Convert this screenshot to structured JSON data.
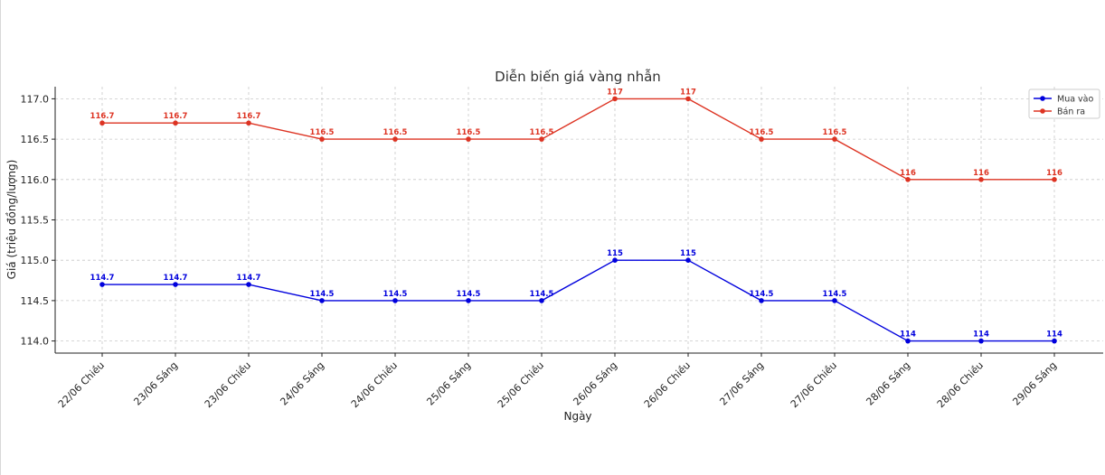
{
  "chart_data": {
    "type": "line",
    "title": "Diễn biến giá vàng nhẫn",
    "xlabel": "Ngày",
    "ylabel": "Giá (triệu đồng/lượng)",
    "categories": [
      "22/06 Chiều",
      "23/06 Sáng",
      "23/06 Chiều",
      "24/06 Sáng",
      "24/06 Chiều",
      "25/06 Sáng",
      "25/06 Chiều",
      "26/06 Sáng",
      "26/06 Chiều",
      "27/06 Sáng",
      "27/06 Chiều",
      "28/06 Sáng",
      "28/06 Chiều",
      "29/06 Sáng"
    ],
    "yticks": [
      "114.0",
      "114.5",
      "115.0",
      "115.5",
      "116.0",
      "116.5",
      "117.0"
    ],
    "ylim": [
      113.85,
      117.15
    ],
    "grid": true,
    "legend_position": "top-right",
    "series": [
      {
        "name": "Mua vào",
        "color": "#0000dd",
        "values": [
          114.7,
          114.7,
          114.7,
          114.5,
          114.5,
          114.5,
          114.5,
          115,
          115,
          114.5,
          114.5,
          114,
          114,
          114
        ],
        "labels": [
          "114.7",
          "114.7",
          "114.7",
          "114.5",
          "114.5",
          "114.5",
          "114.5",
          "115",
          "115",
          "114.5",
          "114.5",
          "114",
          "114",
          "114"
        ]
      },
      {
        "name": "Bán ra",
        "color": "#dd3322",
        "values": [
          116.7,
          116.7,
          116.7,
          116.5,
          116.5,
          116.5,
          116.5,
          117,
          117,
          116.5,
          116.5,
          116,
          116,
          116
        ],
        "labels": [
          "116.7",
          "116.7",
          "116.7",
          "116.5",
          "116.5",
          "116.5",
          "116.5",
          "117",
          "117",
          "116.5",
          "116.5",
          "116",
          "116",
          "116"
        ]
      }
    ]
  }
}
